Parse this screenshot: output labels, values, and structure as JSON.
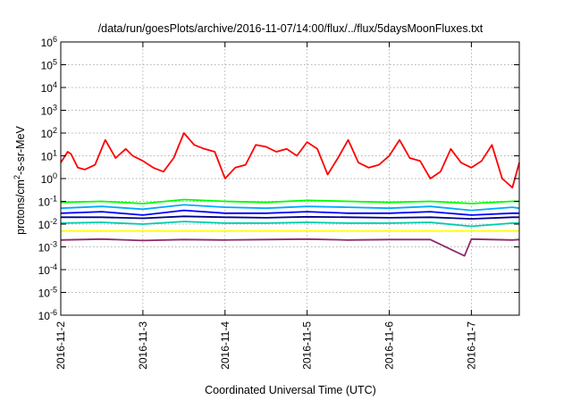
{
  "chart_data": {
    "type": "line",
    "title": "/data/run/goesPlots/archive/2016-11-07/14:00/flux/../flux/5daysMoonFluxes.txt",
    "xlabel": "Coordinated Universal Time (UTC)",
    "ylabel_main": "protons/cm",
    "ylabel_sup": "2",
    "ylabel_rest": "-s-sr-MeV",
    "y_scale": "log",
    "ylim": [
      1e-06,
      1000000
    ],
    "y_ticks": [
      {
        "base": "10",
        "exp": "-6",
        "value": 1e-06
      },
      {
        "base": "10",
        "exp": "-5",
        "value": 1e-05
      },
      {
        "base": "10",
        "exp": "-4",
        "value": 0.0001
      },
      {
        "base": "10",
        "exp": "-3",
        "value": 0.001
      },
      {
        "base": "10",
        "exp": "-2",
        "value": 0.01
      },
      {
        "base": "10",
        "exp": "-1",
        "value": 0.1
      },
      {
        "base": "10",
        "exp": "0",
        "value": 1
      },
      {
        "base": "10",
        "exp": "1",
        "value": 10
      },
      {
        "base": "10",
        "exp": "2",
        "value": 100
      },
      {
        "base": "10",
        "exp": "3",
        "value": 1000
      },
      {
        "base": "10",
        "exp": "4",
        "value": 10000
      },
      {
        "base": "10",
        "exp": "5",
        "value": 100000
      },
      {
        "base": "10",
        "exp": "6",
        "value": 1000000
      }
    ],
    "xlim": [
      "2016-11-02 00:00",
      "2016-11-07 14:00"
    ],
    "x_ticks": [
      "2016-11-2",
      "2016-11-3",
      "2016-11-4",
      "2016-11-5",
      "2016-11-6",
      "2016-11-7"
    ],
    "x_tick_values": [
      "2016-11-02",
      "2016-11-03",
      "2016-11-04",
      "2016-11-05",
      "2016-11-06",
      "2016-11-07"
    ],
    "grid": true,
    "series": [
      {
        "color": "#ff0000",
        "x": [
          "2016-11-02 00:00",
          "2016-11-02 02:00",
          "2016-11-02 03:00",
          "2016-11-02 05:00",
          "2016-11-02 07:00",
          "2016-11-02 10:00",
          "2016-11-02 13:00",
          "2016-11-02 16:00",
          "2016-11-02 19:00",
          "2016-11-02 21:00",
          "2016-11-03 00:00",
          "2016-11-03 03:00",
          "2016-11-03 06:00",
          "2016-11-03 09:00",
          "2016-11-03 12:00",
          "2016-11-03 15:00",
          "2016-11-03 18:00",
          "2016-11-03 21:00",
          "2016-11-04 00:00",
          "2016-11-04 03:00",
          "2016-11-04 06:00",
          "2016-11-04 09:00",
          "2016-11-04 12:00",
          "2016-11-04 15:00",
          "2016-11-04 18:00",
          "2016-11-04 21:00",
          "2016-11-05 00:00",
          "2016-11-05 03:00",
          "2016-11-05 06:00",
          "2016-11-05 09:00",
          "2016-11-05 12:00",
          "2016-11-05 15:00",
          "2016-11-05 18:00",
          "2016-11-05 21:00",
          "2016-11-06 00:00",
          "2016-11-06 03:00",
          "2016-11-06 06:00",
          "2016-11-06 09:00",
          "2016-11-06 12:00",
          "2016-11-06 15:00",
          "2016-11-06 18:00",
          "2016-11-06 21:00",
          "2016-11-07 00:00",
          "2016-11-07 03:00",
          "2016-11-07 06:00",
          "2016-11-07 09:00",
          "2016-11-07 12:00",
          "2016-11-07 14:00"
        ],
        "values": [
          5,
          15,
          12,
          3,
          2.5,
          4,
          50,
          8,
          20,
          10,
          6,
          3,
          2,
          8,
          100,
          30,
          20,
          15,
          1,
          3,
          4,
          30,
          25,
          15,
          20,
          10,
          40,
          20,
          1.5,
          8,
          50,
          5,
          3,
          4,
          10,
          50,
          8,
          6,
          1,
          2,
          20,
          5,
          3,
          6,
          30,
          1,
          0.4,
          5
        ]
      },
      {
        "color": "#00ff00",
        "x": [
          "2016-11-02 00:00",
          "2016-11-02 12:00",
          "2016-11-03 00:00",
          "2016-11-03 12:00",
          "2016-11-04 00:00",
          "2016-11-04 12:00",
          "2016-11-05 00:00",
          "2016-11-05 12:00",
          "2016-11-06 00:00",
          "2016-11-06 12:00",
          "2016-11-07 00:00",
          "2016-11-07 12:00",
          "2016-11-07 14:00"
        ],
        "values": [
          0.09,
          0.1,
          0.08,
          0.12,
          0.1,
          0.09,
          0.11,
          0.1,
          0.09,
          0.1,
          0.08,
          0.1,
          0.1
        ]
      },
      {
        "color": "#00aaff",
        "x": [
          "2016-11-02 00:00",
          "2016-11-02 12:00",
          "2016-11-03 00:00",
          "2016-11-03 12:00",
          "2016-11-04 00:00",
          "2016-11-04 12:00",
          "2016-11-05 00:00",
          "2016-11-05 12:00",
          "2016-11-06 00:00",
          "2016-11-06 12:00",
          "2016-11-07 00:00",
          "2016-11-07 12:00",
          "2016-11-07 14:00"
        ],
        "values": [
          0.05,
          0.06,
          0.045,
          0.07,
          0.055,
          0.05,
          0.06,
          0.055,
          0.05,
          0.06,
          0.04,
          0.055,
          0.05
        ]
      },
      {
        "color": "#0000ff",
        "x": [
          "2016-11-02 00:00",
          "2016-11-02 12:00",
          "2016-11-03 00:00",
          "2016-11-03 12:00",
          "2016-11-04 00:00",
          "2016-11-04 12:00",
          "2016-11-05 00:00",
          "2016-11-05 12:00",
          "2016-11-06 00:00",
          "2016-11-06 12:00",
          "2016-11-07 00:00",
          "2016-11-07 12:00",
          "2016-11-07 14:00"
        ],
        "values": [
          0.03,
          0.035,
          0.025,
          0.04,
          0.03,
          0.03,
          0.035,
          0.03,
          0.03,
          0.035,
          0.025,
          0.03,
          0.03
        ]
      },
      {
        "color": "#000088",
        "x": [
          "2016-11-02 00:00",
          "2016-11-02 12:00",
          "2016-11-03 00:00",
          "2016-11-03 12:00",
          "2016-11-04 00:00",
          "2016-11-04 12:00",
          "2016-11-05 00:00",
          "2016-11-05 12:00",
          "2016-11-06 00:00",
          "2016-11-06 12:00",
          "2016-11-07 00:00",
          "2016-11-07 12:00",
          "2016-11-07 14:00"
        ],
        "values": [
          0.02,
          0.02,
          0.018,
          0.022,
          0.02,
          0.019,
          0.021,
          0.02,
          0.019,
          0.02,
          0.017,
          0.02,
          0.02
        ]
      },
      {
        "color": "#00ccaa",
        "x": [
          "2016-11-02 00:00",
          "2016-11-02 12:00",
          "2016-11-03 00:00",
          "2016-11-03 12:00",
          "2016-11-04 00:00",
          "2016-11-04 12:00",
          "2016-11-05 00:00",
          "2016-11-05 12:00",
          "2016-11-06 00:00",
          "2016-11-06 12:00",
          "2016-11-07 00:00",
          "2016-11-07 12:00",
          "2016-11-07 14:00"
        ],
        "values": [
          0.011,
          0.012,
          0.01,
          0.013,
          0.011,
          0.011,
          0.012,
          0.011,
          0.011,
          0.012,
          0.008,
          0.011,
          0.011
        ]
      },
      {
        "color": "#ffff00",
        "x": [
          "2016-11-02 00:00",
          "2016-11-02 12:00",
          "2016-11-03 00:00",
          "2016-11-03 12:00",
          "2016-11-04 00:00",
          "2016-11-04 12:00",
          "2016-11-05 00:00",
          "2016-11-05 12:00",
          "2016-11-06 00:00",
          "2016-11-06 12:00",
          "2016-11-07 00:00",
          "2016-11-07 12:00",
          "2016-11-07 14:00"
        ],
        "values": [
          0.005,
          0.005,
          0.005,
          0.005,
          0.005,
          0.005,
          0.005,
          0.005,
          0.005,
          0.005,
          0.005,
          0.005,
          0.005
        ]
      },
      {
        "color": "#8b2b6b",
        "x": [
          "2016-11-02 00:00",
          "2016-11-02 12:00",
          "2016-11-03 00:00",
          "2016-11-03 12:00",
          "2016-11-04 00:00",
          "2016-11-04 12:00",
          "2016-11-05 00:00",
          "2016-11-05 12:00",
          "2016-11-06 00:00",
          "2016-11-06 12:00",
          "2016-11-06 22:00",
          "2016-11-07 00:00",
          "2016-11-07 12:00",
          "2016-11-07 14:00"
        ],
        "values": [
          0.002,
          0.0022,
          0.0019,
          0.0021,
          0.002,
          0.0021,
          0.0022,
          0.002,
          0.0021,
          0.0021,
          0.0004,
          0.0022,
          0.002,
          0.0021
        ]
      }
    ]
  }
}
